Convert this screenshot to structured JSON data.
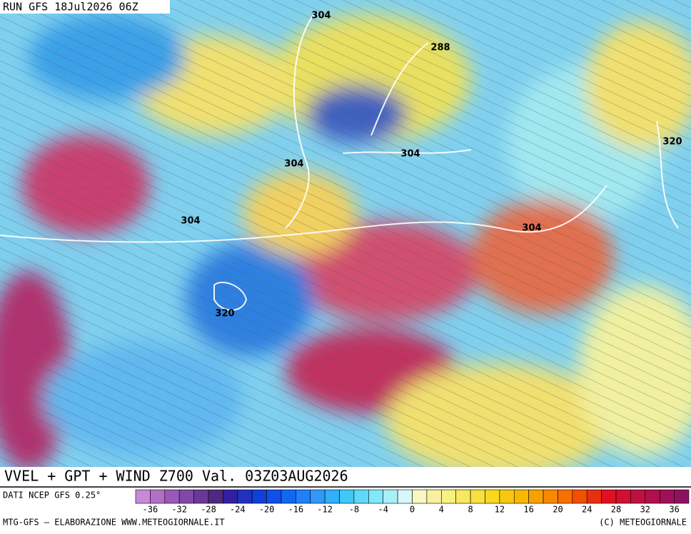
{
  "header": {
    "run": "RUN GFS 18Jul2026 06Z"
  },
  "contour_labels": [
    "304",
    "288",
    "304",
    "304",
    "320",
    "304",
    "304",
    "320"
  ],
  "title": "VVEL + GPT + WIND Z700 Val. 03Z03AUG2026",
  "source": "DATI NCEP GFS 0.25°",
  "colorbar": {
    "range": [
      -38,
      38
    ],
    "ticks": [
      -36,
      -32,
      -28,
      -24,
      -20,
      -16,
      -12,
      -8,
      -4,
      0,
      4,
      8,
      12,
      16,
      20,
      24,
      28,
      32,
      36
    ],
    "colors": [
      "#c88ad8",
      "#b070c8",
      "#9a58b8",
      "#8048a8",
      "#6a3898",
      "#502880",
      "#3020a0",
      "#2030c0",
      "#1040d8",
      "#1050e8",
      "#1068f0",
      "#2080f8",
      "#3098f8",
      "#30b0f8",
      "#40c8f8",
      "#60d8f8",
      "#80e8f8",
      "#a8f0f8",
      "#d8f8f8",
      "#f8f8c0",
      "#f8f0a0",
      "#f8f080",
      "#f8e860",
      "#f8e040",
      "#f8d820",
      "#f8c810",
      "#f8b800",
      "#f8a000",
      "#f88800",
      "#f87000",
      "#f05000",
      "#e83010",
      "#e01020",
      "#d01030",
      "#c01040",
      "#b01050",
      "#a01058",
      "#901060"
    ]
  },
  "footer": {
    "left": "MTG-GFS — ELABORAZIONE WWW.METEOGIORNALE.IT",
    "right": "(C) METEOGIORNALE"
  }
}
